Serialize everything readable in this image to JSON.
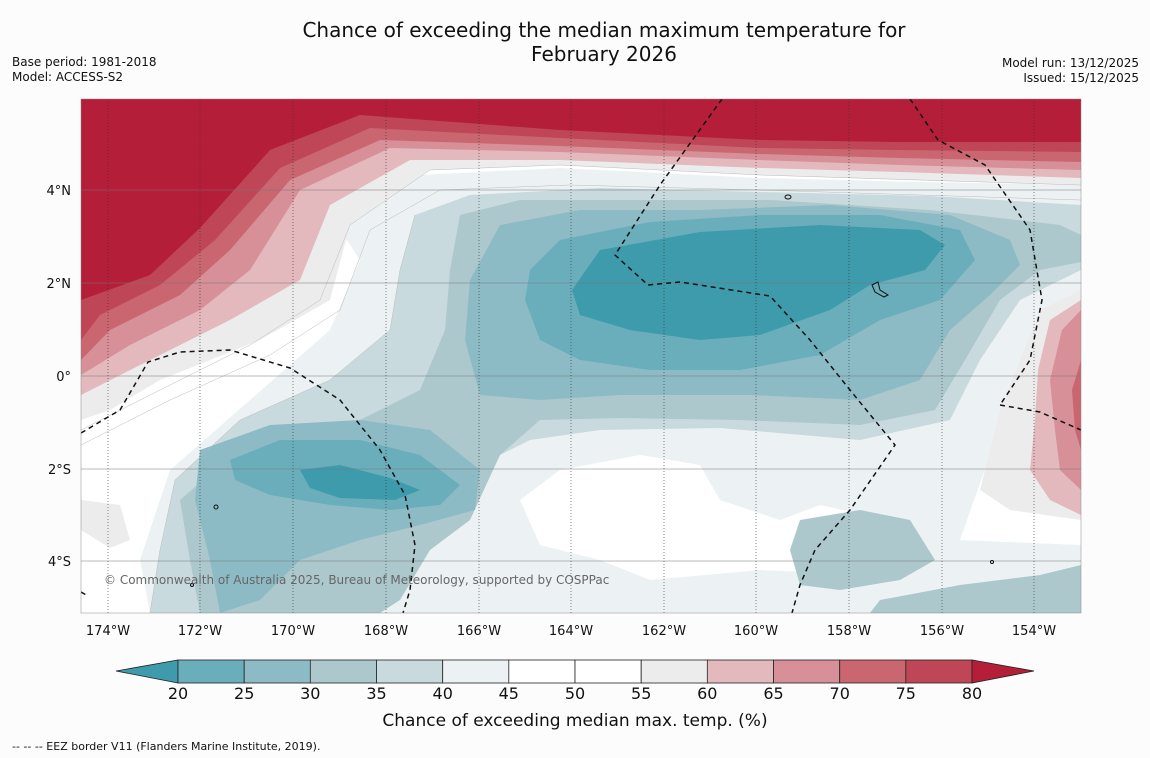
{
  "header": {
    "title_line1": "Chance of exceeding the median maximum temperature for",
    "title_line2": "February 2026",
    "base_period": "Base period: 1981-2018",
    "model": "Model: ACCESS-S2",
    "model_run": "Model run: 13/12/2025",
    "issued": "Issued: 15/12/2025"
  },
  "map": {
    "copyright": "© Commonwealth of Australia 2025, Bureau of Meteorology, supported by COSPPac",
    "lat_labels": [
      "4°N",
      "2°N",
      "0°",
      "2°S",
      "4°S"
    ],
    "lon_labels": [
      "174°W",
      "172°W",
      "170°W",
      "168°W",
      "166°W",
      "164°W",
      "162°W",
      "160°W",
      "158°W",
      "156°W",
      "154°W"
    ]
  },
  "colorbar": {
    "title": "Chance of exceeding median max. temp. (%)",
    "ticks": [
      "20",
      "25",
      "30",
      "35",
      "40",
      "45",
      "50",
      "55",
      "60",
      "65",
      "70",
      "75",
      "80"
    ],
    "colors": {
      "lt20": "#3e9bab",
      "20-25": "#6aaebb",
      "25-30": "#8cbbc6",
      "30-35": "#acc8cd",
      "35-40": "#c8dade",
      "40-45": "#ecf2f3",
      "45-50": "#ffffff",
      "50-55": "#ffffff",
      "55-60": "#ececec",
      "60-65": "#e3b9bd",
      "65-70": "#d78f98",
      "70-75": "#c96670",
      "75-80": "#bf4656",
      "gt80": "#b41e39"
    }
  },
  "footer": {
    "legend_text": "--  --  -- EEZ border V11 (Flanders Marine Institute, 2019)."
  }
}
